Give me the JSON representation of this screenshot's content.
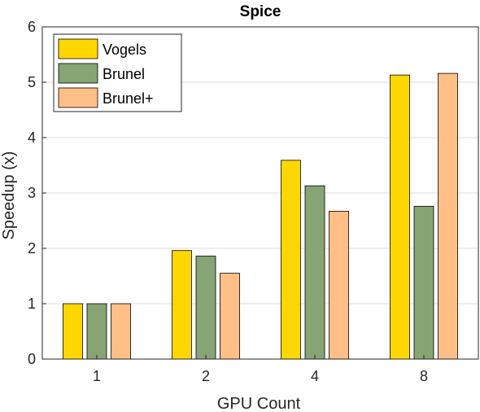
{
  "chart_data": {
    "type": "bar",
    "title": "Spice",
    "xlabel": "GPU Count",
    "ylabel": "Speedup (x)",
    "categories": [
      "1",
      "2",
      "4",
      "8"
    ],
    "ylim": [
      0,
      6
    ],
    "yticks": [
      "0",
      "1",
      "2",
      "3",
      "4",
      "5",
      "6"
    ],
    "grid": true,
    "legend_position": "top-left",
    "series": [
      {
        "name": "Vogels",
        "color": "#FFD700",
        "values": [
          1.0,
          1.96,
          3.59,
          5.13
        ]
      },
      {
        "name": "Brunel",
        "color": "#87A475",
        "values": [
          1.0,
          1.86,
          3.13,
          2.76
        ]
      },
      {
        "name": "Brunel+",
        "color": "#FFBF86",
        "values": [
          1.0,
          1.55,
          2.67,
          5.16
        ]
      }
    ]
  }
}
